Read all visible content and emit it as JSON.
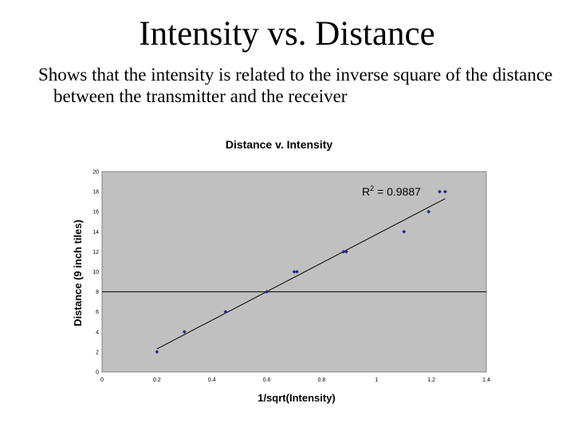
{
  "slide": {
    "title": "Intensity vs. Distance",
    "subtitle": "Shows that the intensity is related to the inverse square of the distance between the transmitter and the receiver"
  },
  "colors": {
    "plot_background": "#c0c0c0",
    "point": "#1f2a8f",
    "line": "#000000"
  },
  "chart_data": {
    "type": "scatter",
    "title": "Distance v. Intensity",
    "xlabel": "1/sqrt(Intensity)",
    "ylabel": "Distance (9 inch tiles)",
    "xlim": [
      0,
      1.4
    ],
    "ylim": [
      0,
      20
    ],
    "x_ticks": [
      "0",
      "0.2",
      "0.4",
      "0.6",
      "0.8",
      "1",
      "1.2",
      "1.4"
    ],
    "y_ticks": [
      "0",
      "2",
      "4",
      "6",
      "8",
      "10",
      "12",
      "14",
      "16",
      "18",
      "20"
    ],
    "grid": false,
    "legend": "none",
    "annotation": {
      "prefix": "R",
      "superscript": "2",
      "suffix": " = 0.9887"
    },
    "points": [
      {
        "x": 0.2,
        "y": 2
      },
      {
        "x": 0.3,
        "y": 4
      },
      {
        "x": 0.45,
        "y": 6
      },
      {
        "x": 0.6,
        "y": 8
      },
      {
        "x": 0.7,
        "y": 10
      },
      {
        "x": 0.71,
        "y": 10
      },
      {
        "x": 0.88,
        "y": 12
      },
      {
        "x": 0.89,
        "y": 12
      },
      {
        "x": 1.1,
        "y": 14
      },
      {
        "x": 1.19,
        "y": 16
      },
      {
        "x": 1.23,
        "y": 18
      },
      {
        "x": 1.25,
        "y": 18
      }
    ],
    "trendline": {
      "x": [
        0.2,
        1.25
      ],
      "y": [
        2.3,
        17.3
      ]
    },
    "reference_line_y": 8
  }
}
